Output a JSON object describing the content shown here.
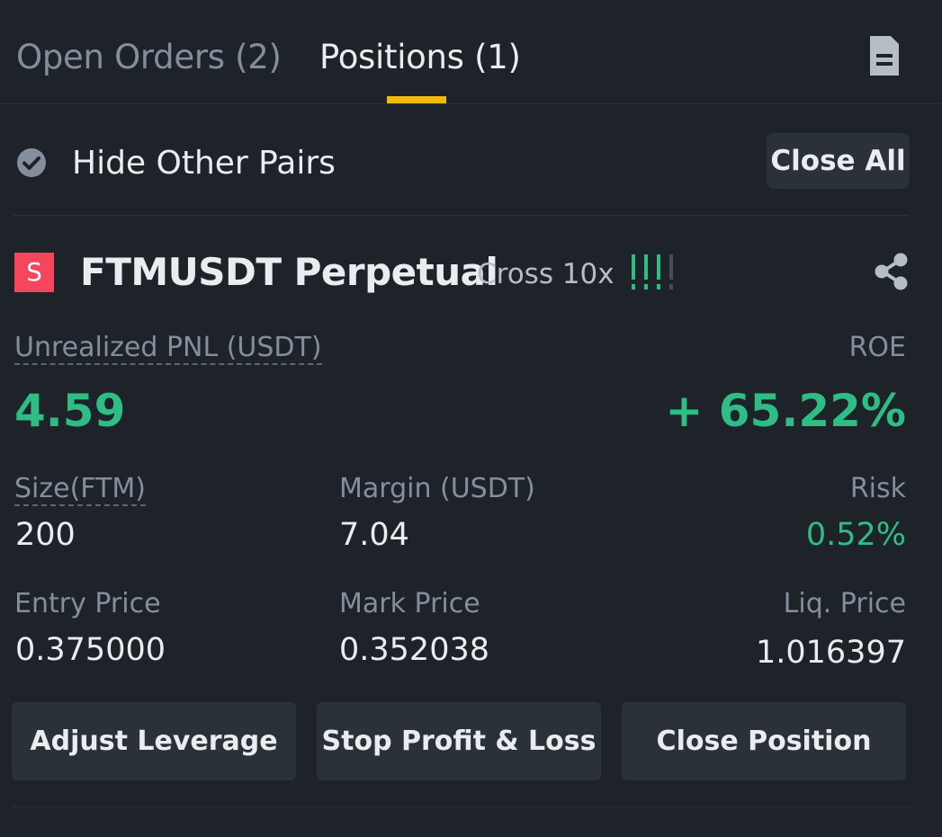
{
  "tabs": {
    "open_orders": "Open Orders (2)",
    "positions": "Positions (1)"
  },
  "icons": {
    "document": "document-icon",
    "check": "check-circle-icon",
    "share": "share-icon"
  },
  "filter": {
    "hide_other_pairs": "Hide Other Pairs",
    "close_all": "Close All"
  },
  "position": {
    "badge": "S",
    "symbol": "FTMUSDT Perpetual",
    "margin_mode": "Cross 10x",
    "risk_level": "!!!!",
    "risk_level_active": 3,
    "risk_level_total": 4,
    "unrealized_pnl_label": "Unrealized PNL (USDT)",
    "unrealized_pnl_value": "4.59",
    "roe_label": "ROE",
    "roe_value": "+ 65.22%",
    "size_label": "Size(FTM)",
    "size_value": "200",
    "margin_label": "Margin (USDT)",
    "margin_value": "7.04",
    "risk_label": "Risk",
    "risk_value": "0.52%",
    "entry_price_label": "Entry Price",
    "entry_price_value": "0.375000",
    "mark_price_label": "Mark Price",
    "mark_price_value": "0.352038",
    "liq_price_label": "Liq. Price",
    "liq_price_value": "1.016397"
  },
  "actions": {
    "adjust_leverage": "Adjust Leverage",
    "stop_profit_loss": "Stop Profit & Loss",
    "close_position": "Close Position"
  },
  "colors": {
    "background": "#1e2329",
    "accent": "#f0b90b",
    "positive": "#2ebd85",
    "short_badge": "#f6465d",
    "muted_text": "#848e9c",
    "primary_text": "#eaecef"
  }
}
